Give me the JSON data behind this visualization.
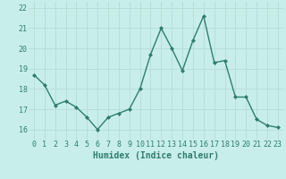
{
  "x": [
    0,
    1,
    2,
    3,
    4,
    5,
    6,
    7,
    8,
    9,
    10,
    11,
    12,
    13,
    14,
    15,
    16,
    17,
    18,
    19,
    20,
    21,
    22,
    23
  ],
  "y": [
    18.7,
    18.2,
    17.2,
    17.4,
    17.1,
    16.6,
    16.0,
    16.6,
    16.8,
    17.0,
    18.0,
    19.7,
    21.0,
    20.0,
    18.9,
    20.4,
    21.6,
    19.3,
    19.4,
    17.6,
    17.6,
    16.5,
    16.2,
    16.1
  ],
  "line_color": "#2e7d6e",
  "bg_color": "#c8eeec",
  "grid_color": "#b8deda",
  "xlabel": "Humidex (Indice chaleur)",
  "ylim": [
    15.5,
    22.3
  ],
  "xlim": [
    -0.5,
    23.5
  ],
  "yticks": [
    16,
    17,
    18,
    19,
    20,
    21,
    22
  ],
  "xticks": [
    0,
    1,
    2,
    3,
    4,
    5,
    6,
    7,
    8,
    9,
    10,
    11,
    12,
    13,
    14,
    15,
    16,
    17,
    18,
    19,
    20,
    21,
    22,
    23
  ],
  "marker": "D",
  "markersize": 2.0,
  "linewidth": 1.0,
  "xlabel_fontsize": 7,
  "tick_fontsize": 6,
  "label_color": "#2e7d6e"
}
